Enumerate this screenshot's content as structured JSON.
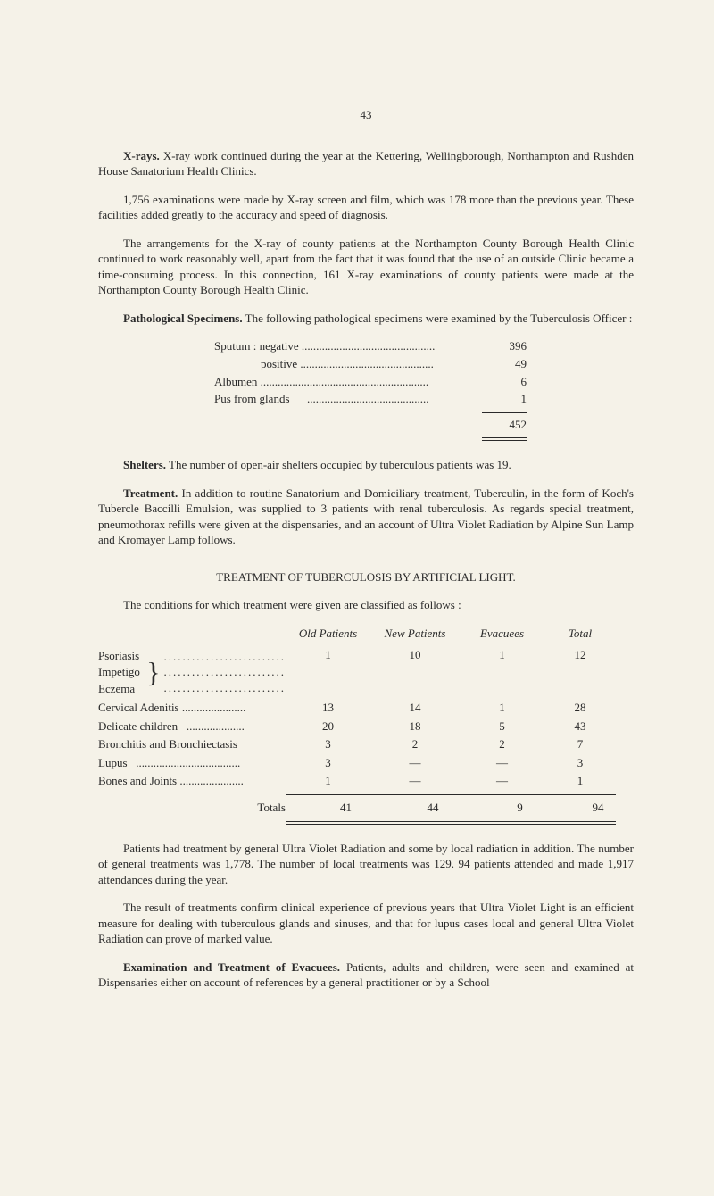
{
  "page_number": "43",
  "paragraphs": {
    "xrays_bold": "X-rays.",
    "xrays": "X-ray work continued during the year at the Kettering, Wellingborough, Northampton and Rushden House Sanatorium Health Clinics.",
    "exams": "1,756 examinations were made by X-ray screen and film, which was 178 more than the previous year. These facilities added greatly to the accuracy and speed of diagnosis.",
    "arrangements": "The arrangements for the X-ray of county patients at the Northampton County Borough Health Clinic continued to work reasonably well, apart from the fact that it was found that the use of an outside Clinic became a time-consuming process. In this connection, 161 X-ray examinations of county patients were made at the Northampton County Borough Health Clinic.",
    "pathological_bold": "Pathological Specimens.",
    "pathological": "The following pathological specimens were examined by the Tuberculosis Officer :",
    "shelters_bold": "Shelters.",
    "shelters": "The number of open-air shelters occupied by tuberculous patients was 19.",
    "treatment_bold": "Treatment.",
    "treatment": "In addition to routine Sanatorium and Domiciliary treatment, Tuberculin, in the form of Koch's Tubercle Baccilli Emulsion, was supplied to 3 patients with renal tuberculosis. As regards special treatment, pneumothorax refills were given at the dispensaries, and an account of Ultra Violet Radiation by Alpine Sun Lamp and Kromayer Lamp follows.",
    "section_heading": "TREATMENT OF TUBERCULOSIS BY ARTIFICIAL LIGHT.",
    "conditions_intro": "The conditions for which treatment were given are classified as follows :",
    "patients_para": "Patients had treatment by general Ultra Violet Radiation and some by local radiation in addition. The number of general treatments was 1,778. The number of local treatments was 129. 94 patients attended and made 1,917 attendances during the year.",
    "result_para": "The result of treatments confirm clinical experience of previous years that Ultra Violet Light is an efficient measure for dealing with tuberculous glands and sinuses, and that for lupus cases local and general Ultra Violet Radiation can prove of marked value.",
    "exam_bold": "Examination and Treatment of Evacuees.",
    "exam_para": "Patients, adults and children, were seen and examined at Dispensaries either on account of references by a general practitioner or by a School"
  },
  "specimens": {
    "rows": [
      {
        "label": "Sputum : negative ..............................................",
        "value": "396"
      },
      {
        "label": "                positive ..............................................",
        "value": "49"
      },
      {
        "label": "Albumen ..........................................................",
        "value": "6"
      },
      {
        "label": "Pus from glands      ..........................................",
        "value": "1"
      }
    ],
    "total": "452"
  },
  "treatment_table": {
    "headers": {
      "old": "Old Patients",
      "new": "New Patients",
      "evac": "Evacuees",
      "total": "Total"
    },
    "group": {
      "labels": [
        "Psoriasis",
        "Impetigo",
        "Eczema"
      ],
      "dots": "..........................",
      "old": "1",
      "new": "10",
      "evac": "1",
      "total": "12"
    },
    "rows": [
      {
        "label": "Cervical Adenitis ......................",
        "old": "13",
        "new": "14",
        "evac": "1",
        "total": "28"
      },
      {
        "label": "Delicate children   ....................",
        "old": "20",
        "new": "18",
        "evac": "5",
        "total": "43"
      },
      {
        "label": "Bronchitis and Bronchiectasis",
        "old": "3",
        "new": "2",
        "evac": "2",
        "total": "7"
      },
      {
        "label": "Lupus   ....................................",
        "old": "3",
        "new": "—",
        "evac": "—",
        "total": "3"
      },
      {
        "label": "Bones and Joints ......................",
        "old": "1",
        "new": "—",
        "evac": "—",
        "total": "1"
      }
    ],
    "totals_row": {
      "label": "Totals",
      "old": "41",
      "new": "44",
      "evac": "9",
      "total": "94"
    }
  }
}
